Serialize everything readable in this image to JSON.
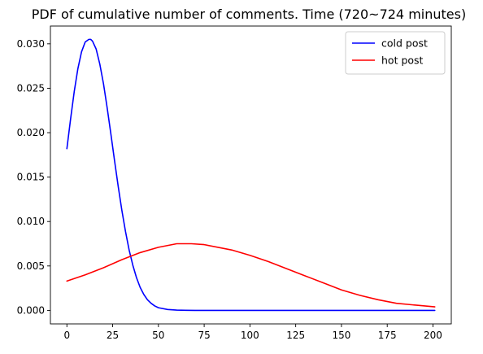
{
  "chart_data": {
    "type": "line",
    "title": "PDF of cumulative number of comments. Time (720~724 minutes)",
    "xlabel": "",
    "ylabel": "",
    "xlim": [
      -9,
      210
    ],
    "ylim": [
      -0.00152,
      0.032
    ],
    "x_ticks": [
      0,
      25,
      50,
      75,
      100,
      125,
      150,
      175,
      200
    ],
    "x_tick_labels": [
      "0",
      "25",
      "50",
      "75",
      "100",
      "125",
      "150",
      "175",
      "200"
    ],
    "y_ticks": [
      0.0,
      0.005,
      0.01,
      0.015,
      0.02,
      0.025,
      0.03
    ],
    "y_tick_labels": [
      "0.000",
      "0.005",
      "0.010",
      "0.015",
      "0.020",
      "0.025",
      "0.030"
    ],
    "grid": false,
    "legend_position": "top-right",
    "series": [
      {
        "name": "cold post",
        "color": "#0000ff",
        "x": [
          0,
          2,
          4,
          6,
          8,
          10,
          12,
          13,
          14,
          16,
          18,
          20,
          22,
          24,
          26,
          28,
          30,
          32,
          34,
          36,
          38,
          40,
          42,
          44,
          46,
          48,
          50,
          55,
          60,
          65,
          70,
          80,
          100,
          125,
          150,
          175,
          201
        ],
        "y": [
          0.0182,
          0.0215,
          0.0246,
          0.0272,
          0.0291,
          0.0302,
          0.0305,
          0.0305,
          0.0303,
          0.0294,
          0.0277,
          0.0255,
          0.0228,
          0.0199,
          0.0169,
          0.014,
          0.0113,
          0.0089,
          0.0068,
          0.0051,
          0.0037,
          0.0026,
          0.0018,
          0.0012,
          0.0008,
          0.0005,
          0.0003,
          0.0001,
          3e-05,
          1e-05,
          0.0,
          0.0,
          0.0,
          0.0,
          0.0,
          0.0,
          0.0
        ]
      },
      {
        "name": "hot post",
        "color": "#ff0000",
        "x": [
          0,
          10,
          20,
          30,
          40,
          50,
          60,
          68,
          75,
          90,
          100,
          110,
          120,
          130,
          140,
          150,
          160,
          170,
          180,
          190,
          201
        ],
        "y": [
          0.0033,
          0.004,
          0.0048,
          0.0057,
          0.0065,
          0.0071,
          0.0075,
          0.0075,
          0.0074,
          0.0068,
          0.0062,
          0.0055,
          0.0047,
          0.0039,
          0.0031,
          0.0023,
          0.0017,
          0.0012,
          0.0008,
          0.0006,
          0.0004
        ]
      }
    ]
  }
}
